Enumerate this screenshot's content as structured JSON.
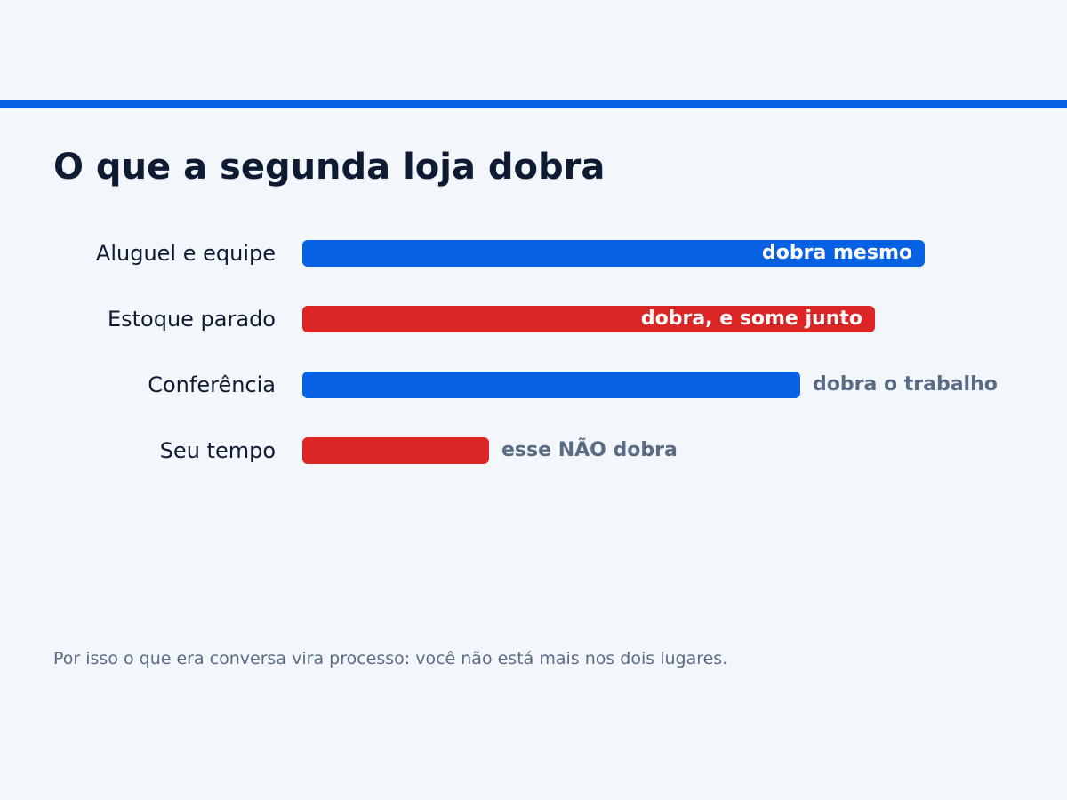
{
  "header": {
    "title": "O que a segunda loja dobra"
  },
  "footer": {
    "note": "Por isso o que era conversa vira processo: você não está mais nos dois lugares."
  },
  "colors": {
    "background": "#f3f7fc",
    "accent_blue": "#0762e3",
    "accent_red": "#dc2626",
    "text_dark": "#0f1b33",
    "text_muted": "#5a6b85"
  },
  "chart_data": {
    "type": "bar",
    "orientation": "horizontal",
    "title": "O que a segunda loja dobra",
    "xlabel": "",
    "ylabel": "",
    "xlim": [
      0,
      100
    ],
    "grid": false,
    "categories": [
      "Aluguel e equipe",
      "Estoque parado",
      "Conferência",
      "Seu tempo"
    ],
    "values": [
      100,
      92,
      80,
      30
    ],
    "data_labels": [
      "dobra mesmo",
      "dobra, e some junto",
      "dobra o trabalho",
      "esse NÃO dobra"
    ],
    "label_position": [
      "inside",
      "inside",
      "outside",
      "outside"
    ],
    "bar_colors": [
      "#0762e3",
      "#dc2626",
      "#0762e3",
      "#dc2626"
    ]
  }
}
